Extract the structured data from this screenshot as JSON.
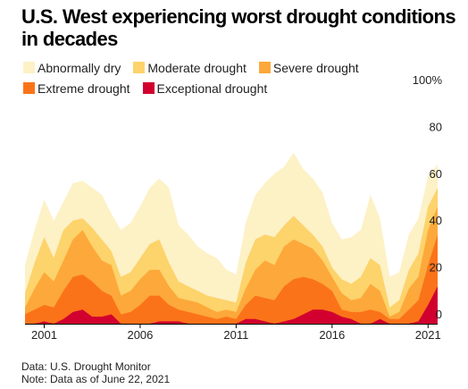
{
  "title": "U.S. West experiencing worst drought conditions in decades",
  "legend": [
    {
      "label": "Abnormally dry",
      "color": "#fdf1c6"
    },
    {
      "label": "Moderate drought",
      "color": "#fdd36b"
    },
    {
      "label": "Severe drought",
      "color": "#fda83a"
    },
    {
      "label": "Extreme drought",
      "color": "#fb7319"
    },
    {
      "label": "Exceptional drought",
      "color": "#d1002f"
    }
  ],
  "footer": {
    "source": "Data: U.S. Drought Monitor",
    "note": "Note: Data as of June 22, 2021"
  },
  "chart_data": {
    "type": "area",
    "stacking": "cumulative",
    "title": "U.S. West experiencing worst drought conditions in decades",
    "xlabel": "",
    "ylabel": "",
    "xlim": [
      2000.0,
      2021.5
    ],
    "ylim": [
      0,
      100
    ],
    "x_ticks": [
      2001,
      2006,
      2011,
      2016,
      2021
    ],
    "y_ticks": [
      {
        "value": 0,
        "label": "0"
      },
      {
        "value": 20,
        "label": "20"
      },
      {
        "value": 40,
        "label": "40"
      },
      {
        "value": 60,
        "label": "60"
      },
      {
        "value": 80,
        "label": "80"
      },
      {
        "value": 100,
        "label": "100%"
      }
    ],
    "grid": false,
    "legend_position": "top",
    "x": [
      2000.0,
      2000.5,
      2001.0,
      2001.5,
      2002.0,
      2002.5,
      2003.0,
      2003.5,
      2004.0,
      2004.5,
      2005.0,
      2005.5,
      2006.0,
      2006.5,
      2007.0,
      2007.5,
      2008.0,
      2008.5,
      2009.0,
      2009.5,
      2010.0,
      2010.5,
      2011.0,
      2011.5,
      2012.0,
      2012.5,
      2013.0,
      2013.5,
      2014.0,
      2014.5,
      2015.0,
      2015.5,
      2016.0,
      2016.5,
      2017.0,
      2017.5,
      2018.0,
      2018.5,
      2019.0,
      2019.5,
      2020.0,
      2020.5,
      2021.0,
      2021.5
    ],
    "series": [
      {
        "name": "Exceptional drought",
        "values": [
          0,
          0,
          1,
          0,
          2,
          5,
          6,
          3,
          3,
          4,
          0,
          0,
          0,
          0,
          1,
          1,
          1,
          0,
          0,
          0,
          0,
          0,
          0,
          2,
          2,
          1,
          0,
          1,
          2,
          4,
          6,
          6,
          5,
          3,
          2,
          0,
          0,
          2,
          0,
          0,
          0,
          1,
          8,
          16
        ]
      },
      {
        "name": "Extreme drought",
        "values": [
          4,
          6,
          8,
          7,
          14,
          20,
          21,
          18,
          14,
          12,
          4,
          5,
          8,
          12,
          12,
          8,
          6,
          5,
          4,
          3,
          2,
          3,
          2,
          8,
          12,
          11,
          10,
          16,
          19,
          20,
          19,
          17,
          14,
          6,
          5,
          5,
          6,
          5,
          2,
          2,
          6,
          10,
          25,
          38
        ]
      },
      {
        "name": "Severe drought",
        "values": [
          7,
          15,
          22,
          18,
          27,
          36,
          40,
          33,
          27,
          25,
          12,
          14,
          19,
          23,
          23,
          16,
          11,
          10,
          9,
          7,
          5,
          6,
          5,
          15,
          23,
          27,
          25,
          33,
          36,
          34,
          32,
          27,
          20,
          13,
          10,
          11,
          17,
          14,
          3,
          5,
          15,
          20,
          40,
          50
        ]
      },
      {
        "name": "Moderate drought",
        "values": [
          13,
          26,
          37,
          28,
          40,
          44,
          45,
          41,
          36,
          31,
          20,
          22,
          28,
          34,
          36,
          26,
          18,
          16,
          14,
          12,
          11,
          10,
          9,
          26,
          36,
          38,
          37,
          42,
          46,
          42,
          38,
          33,
          24,
          19,
          17,
          20,
          28,
          25,
          7,
          10,
          23,
          30,
          50,
          58
        ]
      },
      {
        "name": "Abnormally dry",
        "values": [
          25,
          40,
          53,
          44,
          52,
          60,
          61,
          58,
          55,
          47,
          40,
          43,
          50,
          58,
          62,
          58,
          42,
          38,
          33,
          30,
          28,
          23,
          21,
          43,
          55,
          60,
          64,
          67,
          73,
          66,
          62,
          56,
          43,
          36,
          37,
          40,
          55,
          45,
          20,
          22,
          38,
          45,
          63,
          68
        ]
      }
    ]
  }
}
